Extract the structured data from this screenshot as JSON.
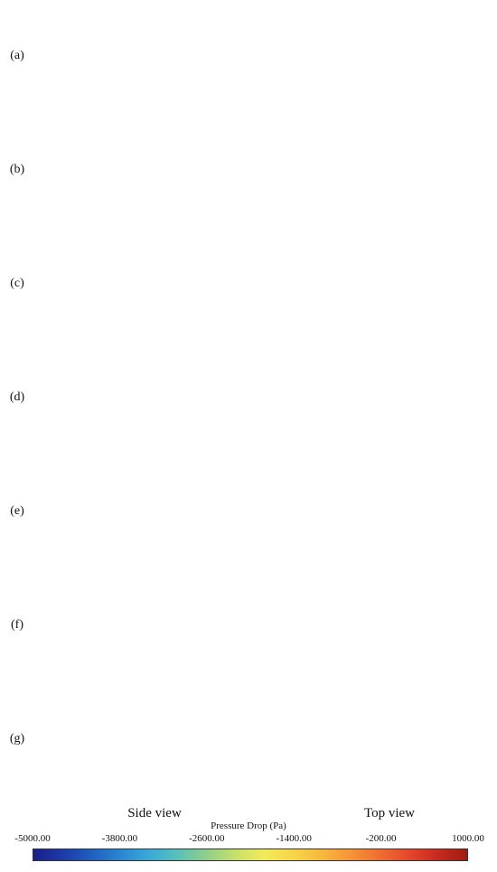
{
  "rows": [
    "(a)",
    "(b)",
    "(c)",
    "(d)",
    "(e)",
    "(f)",
    "(g)"
  ],
  "views": {
    "side": "Side view",
    "top": "Top view"
  },
  "colorbar": {
    "title": "Pressure Drop (Pa)",
    "ticks": [
      "-5000.00",
      "-3800.00",
      "-2600.00",
      "-1400.00",
      "-200.00",
      "1000.00"
    ],
    "colors": [
      "#1a1f8a",
      "#1c3aa8",
      "#1f5fbf",
      "#2a86d1",
      "#3aa9d8",
      "#59c1b8",
      "#8fd08a",
      "#c8e06a",
      "#f3ea5b",
      "#f6d548",
      "#f7b73e",
      "#f59337",
      "#ef6d31",
      "#e4472b",
      "#c8291f",
      "#9e1c10"
    ]
  }
}
